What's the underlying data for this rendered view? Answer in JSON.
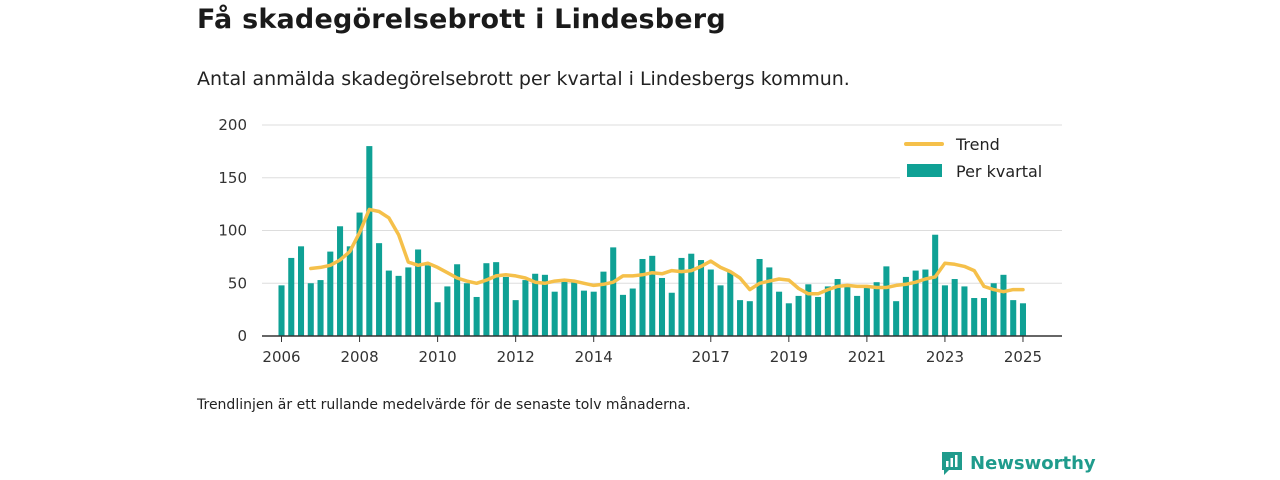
{
  "header": {
    "title": "Få skadegörelsebrott i Lindesberg",
    "subtitle": "Antal anmälda skadegörelsebrott per kvartal i Lindesbergs kommun."
  },
  "footnote": "Trendlinjen är ett rullande medelvärde för de senaste tolv månaderna.",
  "brand": {
    "name": "Newsworthy",
    "icon": "newsworthy-logo-icon"
  },
  "colors": {
    "bars": "#0fa195",
    "trend": "#f5c04a",
    "axis": "#333333",
    "grid": "#dddddd"
  },
  "chart_data": {
    "type": "bar",
    "x_unit": "year (quarter start)",
    "xlim": [
      2005.5,
      2026.0
    ],
    "ylim": [
      0,
      200
    ],
    "yticks": [
      0,
      50,
      100,
      150,
      200
    ],
    "xticks": [
      "2006",
      "2008",
      "2010",
      "2012",
      "2014",
      "2017",
      "2019",
      "2021",
      "2023",
      "2025"
    ],
    "xtick_values": [
      2006,
      2008,
      2010,
      2012,
      2014,
      2017,
      2019,
      2021,
      2023,
      2025
    ],
    "legend": {
      "placement": "top-right",
      "trend_label": "Trend",
      "bars_label": "Per kvartal"
    },
    "x": [
      2006.0,
      2006.25,
      2006.5,
      2006.75,
      2007.0,
      2007.25,
      2007.5,
      2007.75,
      2008.0,
      2008.25,
      2008.5,
      2008.75,
      2009.0,
      2009.25,
      2009.5,
      2009.75,
      2010.0,
      2010.25,
      2010.5,
      2010.75,
      2011.0,
      2011.25,
      2011.5,
      2011.75,
      2012.0,
      2012.25,
      2012.5,
      2012.75,
      2013.0,
      2013.25,
      2013.5,
      2013.75,
      2014.0,
      2014.25,
      2014.5,
      2014.75,
      2015.0,
      2015.25,
      2015.5,
      2015.75,
      2016.0,
      2016.25,
      2016.5,
      2016.75,
      2017.0,
      2017.25,
      2017.5,
      2017.75,
      2018.0,
      2018.25,
      2018.5,
      2018.75,
      2019.0,
      2019.25,
      2019.5,
      2019.75,
      2020.0,
      2020.25,
      2020.5,
      2020.75,
      2021.0,
      2021.25,
      2021.5,
      2021.75,
      2022.0,
      2022.25,
      2022.5,
      2022.75,
      2023.0,
      2023.25,
      2023.5,
      2023.75,
      2024.0,
      2024.25,
      2024.5,
      2024.75,
      2025.0
    ],
    "series": [
      {
        "name": "Per kvartal",
        "values": [
          48,
          74,
          85,
          50,
          53,
          80,
          104,
          85,
          117,
          180,
          88,
          62,
          57,
          65,
          82,
          67,
          32,
          47,
          68,
          50,
          37,
          69,
          70,
          56,
          34,
          53,
          59,
          58,
          42,
          53,
          51,
          43,
          42,
          61,
          84,
          39,
          45,
          73,
          76,
          55,
          41,
          74,
          78,
          72,
          63,
          48,
          61,
          34,
          33,
          73,
          65,
          42,
          31,
          38,
          49,
          37,
          47,
          54,
          48,
          38,
          47,
          51,
          66,
          33,
          56,
          62,
          63,
          96,
          48,
          54,
          47,
          36,
          36,
          50,
          58,
          34,
          31
        ]
      },
      {
        "name": "Trend",
        "x": [
          2006.75,
          2007.0,
          2007.25,
          2007.5,
          2007.75,
          2008.0,
          2008.25,
          2008.5,
          2008.75,
          2009.0,
          2009.25,
          2009.5,
          2009.75,
          2010.0,
          2010.25,
          2010.5,
          2010.75,
          2011.0,
          2011.25,
          2011.5,
          2011.75,
          2012.0,
          2012.25,
          2012.5,
          2012.75,
          2013.0,
          2013.25,
          2013.5,
          2013.75,
          2014.0,
          2014.25,
          2014.5,
          2014.75,
          2015.0,
          2015.25,
          2015.5,
          2015.75,
          2016.0,
          2016.25,
          2016.5,
          2016.75,
          2017.0,
          2017.25,
          2017.5,
          2017.75,
          2018.0,
          2018.25,
          2018.5,
          2018.75,
          2019.0,
          2019.25,
          2019.5,
          2019.75,
          2020.0,
          2020.25,
          2020.5,
          2020.75,
          2021.0,
          2021.25,
          2021.5,
          2021.75,
          2022.0,
          2022.25,
          2022.5,
          2022.75,
          2023.0,
          2023.25,
          2023.5,
          2023.75,
          2024.0,
          2024.25,
          2024.5,
          2024.75,
          2025.0
        ],
        "values": [
          64,
          65,
          67,
          72,
          80,
          98,
          120,
          118,
          112,
          96,
          70,
          67,
          69,
          65,
          60,
          55,
          52,
          50,
          53,
          57,
          58,
          57,
          55,
          51,
          50,
          52,
          53,
          52,
          50,
          48,
          49,
          51,
          57,
          57,
          58,
          60,
          59,
          62,
          61,
          62,
          66,
          71,
          65,
          61,
          55,
          44,
          50,
          52,
          54,
          53,
          45,
          40,
          40,
          44,
          47,
          48,
          47,
          47,
          46,
          46,
          48,
          49,
          51,
          54,
          56,
          69,
          68,
          66,
          62,
          47,
          44,
          42,
          44,
          44
        ]
      }
    ]
  }
}
